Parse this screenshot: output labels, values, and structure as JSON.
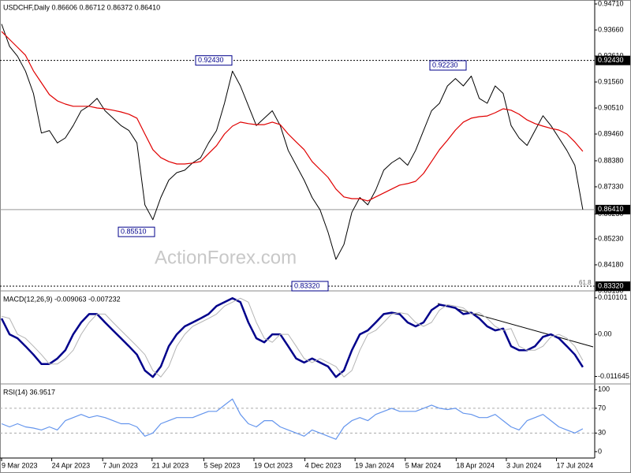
{
  "chart_data": [
    {
      "type": "line",
      "title": "USDCHF,Daily  0.86606 0.86712 0.86372 0.86410",
      "watermark": "ActionForex.com",
      "xlim": [
        0,
        74.5
      ],
      "ylim": [
        0.8316,
        0.9487
      ],
      "yticks": [
        {
          "value": 0.9471,
          "label": "0.94710"
        },
        {
          "value": 0.9366,
          "label": "0.93660"
        },
        {
          "value": 0.9261,
          "label": "0.92610"
        },
        {
          "value": 0.9156,
          "label": "0.91560"
        },
        {
          "value": 0.9051,
          "label": "0.90510"
        },
        {
          "value": 0.8946,
          "label": "0.89460"
        },
        {
          "value": 0.8838,
          "label": "0.88380"
        },
        {
          "value": 0.8733,
          "label": "0.87330"
        },
        {
          "value": 0.8623,
          "label": "0.86230"
        },
        {
          "value": 0.8523,
          "label": "0.85230"
        },
        {
          "value": 0.8418,
          "label": "0.84180"
        },
        {
          "value": 0.8313,
          "label": "0.83130"
        }
      ],
      "levels": [
        {
          "value": 0.9243,
          "label": "0.92430",
          "style": "dotted"
        },
        {
          "value": 0.8641,
          "label": "0.86410",
          "style": "solid"
        },
        {
          "value": 0.8332,
          "label": "0.83320",
          "style": "dotted"
        }
      ],
      "fib_label": "61.8",
      "annotations": [
        {
          "value": 0.9243,
          "label": "0.92430"
        },
        {
          "value": 0.8551,
          "label": "0.85510"
        },
        {
          "value": 0.8332,
          "label": "0.83320"
        },
        {
          "value": 0.9223,
          "label": "0.92230"
        }
      ],
      "series": [
        {
          "color": "#000000",
          "values": [
            0.939,
            0.93,
            0.926,
            0.92,
            0.911,
            0.895,
            0.896,
            0.891,
            0.893,
            0.898,
            0.904,
            0.906,
            0.909,
            0.904,
            0.901,
            0.898,
            0.896,
            0.891,
            0.866,
            0.86,
            0.869,
            0.876,
            0.879,
            0.88,
            0.883,
            0.885,
            0.891,
            0.896,
            0.907,
            0.92,
            0.914,
            0.906,
            0.898,
            0.901,
            0.904,
            0.898,
            0.888,
            0.882,
            0.876,
            0.869,
            0.864,
            0.855,
            0.844,
            0.85,
            0.863,
            0.869,
            0.866,
            0.872,
            0.88,
            0.883,
            0.885,
            0.882,
            0.888,
            0.896,
            0.904,
            0.907,
            0.914,
            0.917,
            0.914,
            0.918,
            0.909,
            0.907,
            0.914,
            0.911,
            0.898,
            0.893,
            0.89,
            0.896,
            0.902,
            0.898,
            0.893,
            0.888,
            0.882,
            0.8641
          ]
        },
        {
          "color": "#e00000",
          "values": [
            0.936,
            0.9328,
            0.9296,
            0.9264,
            0.9201,
            0.9153,
            0.9105,
            0.908,
            0.9067,
            0.9058,
            0.9058,
            0.9058,
            0.9051,
            0.9048,
            0.9042,
            0.9035,
            0.9026,
            0.901,
            0.8946,
            0.8883,
            0.8851,
            0.8835,
            0.8825,
            0.8825,
            0.8829,
            0.8835,
            0.8867,
            0.8899,
            0.8946,
            0.8978,
            0.8994,
            0.8988,
            0.8984,
            0.8984,
            0.8994,
            0.8984,
            0.8946,
            0.8914,
            0.8883,
            0.8835,
            0.8803,
            0.8771,
            0.8724,
            0.8692,
            0.8685,
            0.8685,
            0.8676,
            0.8692,
            0.8708,
            0.8724,
            0.874,
            0.8746,
            0.8755,
            0.8787,
            0.8835,
            0.8883,
            0.8921,
            0.8962,
            0.8994,
            0.901,
            0.9016,
            0.9019,
            0.9032,
            0.9048,
            0.9042,
            0.9026,
            0.9003,
            0.8988,
            0.8978,
            0.8969,
            0.8962,
            0.8946,
            0.8914,
            0.8876
          ]
        }
      ]
    },
    {
      "type": "line",
      "title": "MACD(12,26,9) -0.009063 -0.007232",
      "xlim": [
        0,
        74.5
      ],
      "ylim": [
        -0.0135,
        0.0118
      ],
      "yticks": [
        0.010101,
        {
          "value": 0,
          "label": "0.00"
        },
        -0.011645
      ],
      "series": [
        {
          "color": "#00008b",
          "values": [
            0.0044,
            0,
            -0.0011,
            -0.0033,
            -0.0056,
            -0.0082,
            -0.0082,
            -0.0067,
            -0.0044,
            0,
            0.0033,
            0.0056,
            0.0056,
            0.0033,
            0.0011,
            -0.0011,
            -0.0033,
            -0.0056,
            -0.01,
            -0.0118,
            -0.0089,
            -0.0033,
            0,
            0.0022,
            0.0033,
            0.0044,
            0.0056,
            0.0078,
            0.0089,
            0.01,
            0.0089,
            0.0033,
            -0.0011,
            -0.0022,
            0,
            0,
            -0.0033,
            -0.0067,
            -0.0078,
            -0.0067,
            -0.0078,
            -0.0089,
            -0.0118,
            -0.01,
            -0.0044,
            0,
            0.0011,
            0.0033,
            0.0056,
            0.006,
            0.0056,
            0.0033,
            0.0022,
            0.0033,
            0.0067,
            0.0082,
            0.0078,
            0.0073,
            0.0056,
            0.006,
            0.0044,
            0.0022,
            0.0011,
            0.0016,
            -0.0033,
            -0.0044,
            -0.0044,
            -0.0033,
            -0.0007,
            0,
            -0.0011,
            -0.0033,
            -0.0056,
            -0.009063
          ]
        },
        {
          "color": "#b4b4b4",
          "values": [
            0.005,
            0.0044,
            0,
            -0.0011,
            -0.0033,
            -0.0056,
            -0.0082,
            -0.0082,
            -0.0067,
            -0.0044,
            0,
            0.0033,
            0.0056,
            0.0056,
            0.0033,
            0.0011,
            -0.0011,
            -0.0033,
            -0.0056,
            -0.01,
            -0.0118,
            -0.0089,
            -0.0033,
            0,
            0.0022,
            0.0033,
            0.0044,
            0.0056,
            0.0078,
            0.0089,
            0.01,
            0.0089,
            0.0033,
            -0.0011,
            -0.0022,
            0,
            0,
            -0.0033,
            -0.0067,
            -0.0078,
            -0.0067,
            -0.0078,
            -0.0089,
            -0.0118,
            -0.01,
            -0.0044,
            0,
            0.0011,
            0.0033,
            0.0056,
            0.006,
            0.0056,
            0.0033,
            0.0022,
            0.0033,
            0.0067,
            0.0082,
            0.0078,
            0.0073,
            0.0056,
            0.006,
            0.0044,
            0.0022,
            0.0011,
            0.0016,
            -0.0033,
            -0.0044,
            -0.0044,
            -0.0033,
            -0.0007,
            0,
            -0.0011,
            -0.0033,
            -0.007232
          ]
        }
      ]
    },
    {
      "type": "line",
      "title": "RSI(14) 36.9517",
      "xlim": [
        0,
        74.5
      ],
      "ylim": [
        -9,
        108
      ],
      "yticks": [
        100,
        70,
        30,
        0
      ],
      "levels": [
        {
          "value": 70,
          "style": "dashed"
        },
        {
          "value": 30,
          "style": "dashed"
        }
      ],
      "xticks": [
        {
          "value": 0,
          "label": "9 Mar 2023"
        },
        {
          "value": 6.3,
          "label": "24 Apr 2023"
        },
        {
          "value": 12.7,
          "label": "7 Jun 2023"
        },
        {
          "value": 18.9,
          "label": "21 Jul 2023"
        },
        {
          "value": 25.4,
          "label": "5 Sep 2023"
        },
        {
          "value": 31.7,
          "label": "19 Oct 2023"
        },
        {
          "value": 38.1,
          "label": "4 Dec 2023"
        },
        {
          "value": 44.4,
          "label": "19 Jan 2024"
        },
        {
          "value": 50.7,
          "label": "5 Mar 2024"
        },
        {
          "value": 57.1,
          "label": "18 Apr 2024"
        },
        {
          "value": 63.4,
          "label": "3 Jun 2024"
        },
        {
          "value": 69.7,
          "label": "17 Jul 2024"
        }
      ],
      "series": [
        {
          "color": "#6495ed",
          "values": [
            45,
            40,
            45,
            40,
            38,
            35,
            40,
            35,
            50,
            55,
            60,
            55,
            58,
            55,
            50,
            45,
            45,
            40,
            25,
            30,
            45,
            50,
            55,
            55,
            55,
            60,
            65,
            65,
            75,
            85,
            60,
            45,
            40,
            50,
            50,
            40,
            35,
            30,
            25,
            35,
            30,
            25,
            20,
            40,
            50,
            55,
            50,
            60,
            65,
            70,
            65,
            65,
            65,
            70,
            75,
            70,
            68,
            70,
            62,
            60,
            55,
            55,
            60,
            50,
            40,
            35,
            50,
            55,
            60,
            50,
            40,
            35,
            30,
            36.9517
          ]
        }
      ]
    }
  ]
}
